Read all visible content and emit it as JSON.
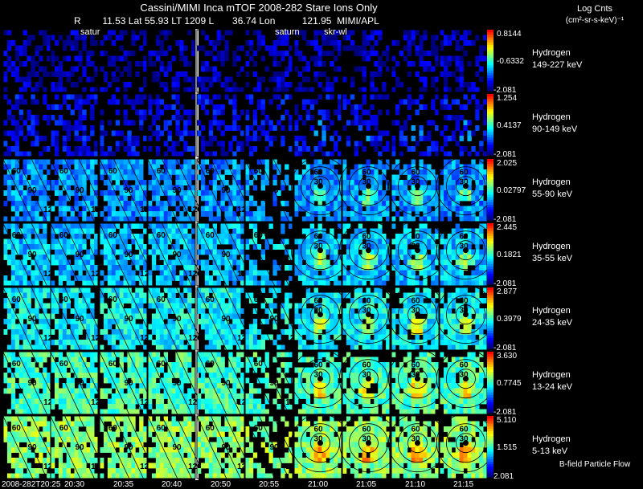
{
  "header": {
    "title": "Cassini/MIMI Inca mTOF  2008-282   Stare    Ions Only",
    "line2": "R        11.53 Lat 55.93 LT 1209 L       36.74 Lon          121.95  MIMI/APL",
    "unit_title": "Log Cnts",
    "unit_subtitle": "(cm²-sr-s-keV)⁻¹"
  },
  "chart_data": {
    "type": "heatmap",
    "title": "Cassini/MIMI Inca mTOF 2008-282 Stare Ions Only",
    "columns": [
      "2008-282T20:25",
      "20:30",
      "20:35",
      "20:40",
      "20:50",
      "20:55",
      "21:00",
      "21:05",
      "21:10",
      "21:15"
    ],
    "column_annotations": [
      {
        "column": 1,
        "text": "satur"
      },
      {
        "column": 5,
        "text": "saturn"
      },
      {
        "column": 6,
        "text": "skr-wl"
      }
    ],
    "rows": [
      {
        "species": "Hydrogen",
        "energy": "149-227 keV",
        "max": "0.8144",
        "mid": "-0.6332",
        "min": "-2.081",
        "level": 0.05
      },
      {
        "species": "Hydrogen",
        "energy": "90-149 keV",
        "max": "1.254",
        "mid": "0.4137",
        "min": "-2.081",
        "level": 0.12
      },
      {
        "species": "Hydrogen",
        "energy": "55-90 keV",
        "max": "2.025",
        "mid": "0.02797",
        "min": "-2.081",
        "level": 0.3
      },
      {
        "species": "Hydrogen",
        "energy": "35-55 keV",
        "max": "2.445",
        "mid": "0.1821",
        "min": "-2.081",
        "level": 0.36
      },
      {
        "species": "Hydrogen",
        "energy": "24-35 keV",
        "max": "2.877",
        "mid": "0.3979",
        "min": "-2.081",
        "level": 0.42
      },
      {
        "species": "Hydrogen",
        "energy": "13-24 keV",
        "max": "3.630",
        "mid": "0.7745",
        "min": "-2.081",
        "level": 0.5
      },
      {
        "species": "Hydrogen",
        "energy": "5-13 keV",
        "max": "5.110",
        "mid": "1.515",
        "min": "2.081",
        "level": 0.58
      }
    ],
    "contour_labels_early": [
      "60",
      "90",
      "120"
    ],
    "contour_labels_late": [
      "30",
      "60",
      "90"
    ],
    "colorscale": [
      "#00007f",
      "#0000ff",
      "#0080ff",
      "#00ffff",
      "#80ff80",
      "#ffff00",
      "#ff8000",
      "#ff0000"
    ]
  },
  "footer": {
    "legend": "B-field Particle Flow"
  }
}
